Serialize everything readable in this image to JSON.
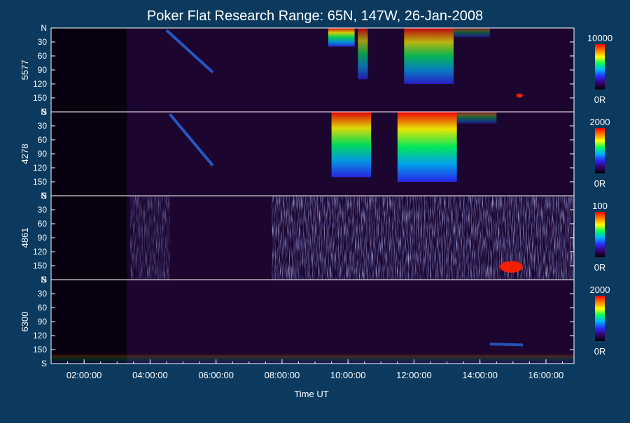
{
  "chart_data": {
    "type": "heatmap",
    "title": "Poker Flat Research Range: 65N, 147W, 26-Jan-2008",
    "xlabel": "Time UT",
    "x_ticks": [
      "02:00:00",
      "04:00:00",
      "06:00:00",
      "08:00:00",
      "10:00:00",
      "12:00:00",
      "14:00:00",
      "16:00:00"
    ],
    "x_tick_hours": [
      2,
      4,
      6,
      8,
      10,
      12,
      14,
      16
    ],
    "x_range_hours": [
      1.0,
      16.85
    ],
    "y_ticks": [
      "N",
      "30",
      "60",
      "90",
      "120",
      "150",
      "S"
    ],
    "y_tick_values": [
      0,
      30,
      60,
      90,
      120,
      150,
      180
    ],
    "y_range": [
      0,
      180
    ],
    "colorbar_colors": [
      "#000000",
      "#3a0070",
      "#2a2aff",
      "#00b0ff",
      "#00ff60",
      "#ffff00",
      "#ff8000",
      "#ff0000"
    ],
    "panels": [
      {
        "ylabel": "5577",
        "cbar_max": "10000",
        "cbar_min": "0R",
        "features": [
          {
            "kind": "band",
            "t": [
              10.3,
              10.6
            ],
            "y": [
              0,
              110
            ],
            "level": 0.6
          },
          {
            "kind": "band",
            "t": [
              9.4,
              10.2
            ],
            "y": [
              0,
              40
            ],
            "level": 0.8
          },
          {
            "kind": "band",
            "t": [
              11.7,
              13.2
            ],
            "y": [
              0,
              120
            ],
            "level": 0.7
          },
          {
            "kind": "band",
            "t": [
              13.2,
              14.3
            ],
            "y": [
              0,
              20
            ],
            "level": 0.3
          },
          {
            "kind": "arc",
            "t": [
              4.5,
              5.9
            ],
            "y": [
              5,
              95
            ],
            "level": 0.4
          },
          {
            "kind": "spot",
            "t": [
              15.1,
              15.3
            ],
            "y": [
              142,
              148
            ],
            "level": 0.9
          }
        ]
      },
      {
        "ylabel": "4278",
        "cbar_max": "2000",
        "cbar_min": "0R",
        "features": [
          {
            "kind": "band",
            "t": [
              9.5,
              10.7
            ],
            "y": [
              0,
              140
            ],
            "level": 0.85
          },
          {
            "kind": "band",
            "t": [
              11.5,
              13.3
            ],
            "y": [
              0,
              150
            ],
            "level": 0.9
          },
          {
            "kind": "band",
            "t": [
              13.3,
              14.5
            ],
            "y": [
              0,
              25
            ],
            "level": 0.35
          },
          {
            "kind": "arc",
            "t": [
              4.6,
              5.9
            ],
            "y": [
              5,
              115
            ],
            "level": 0.4
          }
        ]
      },
      {
        "ylabel": "4861",
        "cbar_max": "100",
        "cbar_min": "0R",
        "features": [
          {
            "kind": "noise",
            "t": [
              7.7,
              16.85
            ],
            "y": [
              0,
              180
            ],
            "level": 0.45
          },
          {
            "kind": "noise",
            "t": [
              3.4,
              4.6
            ],
            "y": [
              0,
              180
            ],
            "level": 0.15
          },
          {
            "kind": "spot",
            "t": [
              14.6,
              15.3
            ],
            "y": [
              140,
              165
            ],
            "level": 0.95
          }
        ]
      },
      {
        "ylabel": "6300",
        "cbar_max": "2000",
        "cbar_min": "0R",
        "features": [
          {
            "kind": "arc",
            "t": [
              14.3,
              15.3
            ],
            "y": [
              138,
              140
            ],
            "level": 0.35
          },
          {
            "kind": "band",
            "t": [
              1.0,
              16.85
            ],
            "y": [
              160,
              180
            ],
            "level": 0.15
          }
        ]
      }
    ]
  }
}
